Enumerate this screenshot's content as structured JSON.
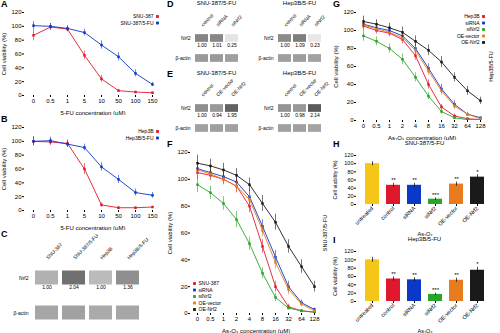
{
  "chart_data": [
    {
      "type": "line",
      "title": "A",
      "xlabel": "5-FU concentration (μM)",
      "ylabel": "Cell viability (%)",
      "categories": [
        "0",
        "0.5",
        "1",
        "5",
        "10",
        "50",
        "100",
        "150"
      ],
      "series": [
        {
          "name": "SNU-387",
          "color": "#e0182d",
          "marker": "square",
          "values": [
            87,
            99,
            96,
            58,
            24,
            7,
            5,
            4
          ],
          "errors": [
            8,
            5,
            4,
            6,
            5,
            2,
            1,
            1
          ]
        },
        {
          "name": "SNU-387/5-FU",
          "color": "#0a38c8",
          "marker": "square",
          "values": [
            101,
            100,
            97,
            91,
            73,
            56,
            32,
            16
          ],
          "errors": [
            6,
            4,
            4,
            5,
            6,
            6,
            5,
            3
          ]
        }
      ],
      "ylim": [
        0,
        120
      ],
      "yticks": [
        0,
        20,
        40,
        60,
        80,
        100,
        120
      ],
      "grid": false,
      "legend": "upper right"
    },
    {
      "type": "line",
      "title": "B",
      "xlabel": "5-FU concentration (μM)",
      "ylabel": "Cell viability (%)",
      "categories": [
        "0",
        "0.5",
        "1",
        "5",
        "10",
        "50",
        "100",
        "150"
      ],
      "series": [
        {
          "name": "Hep3B",
          "color": "#e0182d",
          "marker": "square",
          "values": [
            100,
            99,
            97,
            60,
            8,
            4,
            4,
            5
          ],
          "errors": [
            7,
            5,
            5,
            8,
            3,
            2,
            1,
            1
          ]
        },
        {
          "name": "Hep3B/5-FU",
          "color": "#0a38c8",
          "marker": "square",
          "values": [
            100,
            101,
            96,
            91,
            63,
            45,
            26,
            22
          ],
          "errors": [
            6,
            5,
            5,
            5,
            6,
            6,
            5,
            4
          ]
        }
      ],
      "ylim": [
        0,
        120
      ],
      "yticks": [
        0,
        20,
        40,
        60,
        80,
        100,
        120
      ],
      "grid": false,
      "legend": "upper right"
    },
    {
      "type": "blot",
      "title": "C",
      "categories": [
        "SNU-387",
        "SNU-387/5-FU",
        "Hep3B",
        "Hep3B/5-FU"
      ],
      "series": [
        {
          "name": "Nrf2",
          "values": [
            0.55,
            0.85,
            0.5,
            0.7
          ]
        },
        {
          "name": "β-actin",
          "values": [
            0.6,
            0.62,
            0.58,
            0.6
          ]
        }
      ],
      "values": [
        1.0,
        2.04,
        1.0,
        1.36
      ],
      "value_labels": [
        "1.00",
        "2.04",
        "1.00",
        "1.36"
      ],
      "data_labels": true
    },
    {
      "type": "blot",
      "title": "D",
      "subtitle": "SNU-387/5-FU",
      "categories": [
        "control",
        "siRNA",
        "siNrf2"
      ],
      "series": [
        {
          "name": "Nrf2",
          "values": [
            0.75,
            0.74,
            0.25
          ]
        },
        {
          "name": "β-actin",
          "values": [
            0.65,
            0.65,
            0.63
          ]
        }
      ],
      "values": [
        1.0,
        1.01,
        0.25
      ],
      "value_labels": [
        "1.00",
        "1.01",
        "0.25"
      ],
      "data_labels": true
    },
    {
      "type": "blot",
      "subtitle": "Hep3B/5-FU",
      "categories": [
        "control",
        "siRNA",
        "siNrf2"
      ],
      "series": [
        {
          "name": "Nrf2",
          "values": [
            0.72,
            0.78,
            0.22
          ]
        },
        {
          "name": "β-actin",
          "values": [
            0.63,
            0.64,
            0.62
          ]
        }
      ],
      "values": [
        1.0,
        1.09,
        0.23
      ],
      "value_labels": [
        "1.00",
        "1.09",
        "0.23"
      ],
      "data_labels": true
    },
    {
      "type": "blot",
      "title": "E",
      "subtitle": "SNU-387/5-FU",
      "categories": [
        "control",
        "OE-vector",
        "OE-Nrf2"
      ],
      "series": [
        {
          "name": "Nrf2",
          "values": [
            0.7,
            0.65,
            0.92
          ]
        },
        {
          "name": "β-actin",
          "values": [
            0.62,
            0.63,
            0.62
          ]
        }
      ],
      "values": [
        1.0,
        0.94,
        1.95
      ],
      "value_labels": [
        "1.00",
        "0.94",
        "1.95"
      ],
      "data_labels": true
    },
    {
      "type": "blot",
      "subtitle": "Hep3B/5-FU",
      "categories": [
        "control",
        "OE-vector",
        "OE-Nrf2"
      ],
      "series": [
        {
          "name": "Nrf2",
          "values": [
            0.68,
            0.66,
            0.95
          ]
        },
        {
          "name": "β-actin",
          "values": [
            0.62,
            0.63,
            0.61
          ]
        }
      ],
      "values": [
        1.0,
        0.98,
        2.14
      ],
      "value_labels": [
        "1.00",
        "0.98",
        "2.14"
      ],
      "data_labels": true
    },
    {
      "type": "line",
      "title": "F",
      "xlabel": "As₂O₃ concentration (μM)",
      "ylabel": "Cell viability (%)",
      "annotation": "SNU-387/5-FU",
      "categories": [
        "0",
        "0.5",
        "1",
        "2",
        "4",
        "8",
        "16",
        "32",
        "64",
        "128"
      ],
      "series": [
        {
          "name": "SNU-387",
          "color": "#e0182d",
          "marker": "square",
          "values": [
            105,
            103,
            100,
            95,
            80,
            50,
            20,
            5,
            2,
            1
          ],
          "errors": [
            5,
            4,
            4,
            5,
            5,
            5,
            4,
            2,
            1,
            1
          ]
        },
        {
          "name": "siRNA",
          "color": "#0a38c8",
          "marker": "square",
          "values": [
            108,
            105,
            102,
            98,
            87,
            65,
            42,
            20,
            8,
            3
          ],
          "errors": [
            5,
            4,
            4,
            5,
            5,
            5,
            5,
            4,
            2,
            1
          ]
        },
        {
          "name": "siNrf2",
          "color": "#27a627",
          "marker": "square",
          "values": [
            96,
            90,
            82,
            70,
            52,
            30,
            12,
            4,
            2,
            1
          ],
          "errors": [
            6,
            5,
            5,
            6,
            5,
            4,
            3,
            1,
            1,
            1
          ]
        },
        {
          "name": "OE-vector",
          "color": "#e87b1e",
          "marker": "square",
          "values": [
            107,
            104,
            100,
            95,
            85,
            62,
            38,
            18,
            7,
            2
          ],
          "errors": [
            5,
            4,
            4,
            5,
            5,
            5,
            5,
            4,
            2,
            1
          ]
        },
        {
          "name": "OE-Nrf2",
          "color": "#1a1a1a",
          "marker": "square",
          "values": [
            112,
            110,
            107,
            103,
            96,
            82,
            68,
            50,
            35,
            20
          ],
          "errors": [
            6,
            5,
            5,
            5,
            5,
            6,
            6,
            5,
            5,
            4
          ]
        }
      ],
      "ylim": [
        0,
        120
      ],
      "yticks": [
        0,
        20,
        40,
        60,
        80,
        100,
        120
      ],
      "grid": false,
      "legend": "lower left"
    },
    {
      "type": "line",
      "title": "G",
      "xlabel": "As₂O₃ concentration (μM)",
      "ylabel": "Cell viability (%)",
      "annotation": "Hep3B/5-FU",
      "categories": [
        "0",
        "0.5",
        "1",
        "2",
        "4",
        "8",
        "16",
        "32",
        "64",
        "128"
      ],
      "series": [
        {
          "name": "Hep3B",
          "color": "#e0182d",
          "marker": "square",
          "values": [
            105,
            100,
            97,
            90,
            72,
            40,
            15,
            5,
            2,
            1
          ],
          "errors": [
            5,
            4,
            4,
            5,
            5,
            5,
            3,
            2,
            1,
            1
          ]
        },
        {
          "name": "siRNA",
          "color": "#0a38c8",
          "marker": "square",
          "values": [
            107,
            103,
            100,
            94,
            80,
            58,
            35,
            18,
            7,
            3
          ],
          "errors": [
            5,
            4,
            4,
            5,
            5,
            5,
            5,
            4,
            2,
            1
          ]
        },
        {
          "name": "siNrf2",
          "color": "#27a627",
          "marker": "square",
          "values": [
            94,
            88,
            80,
            68,
            48,
            27,
            10,
            3,
            1,
            1
          ],
          "errors": [
            6,
            5,
            5,
            6,
            5,
            4,
            3,
            1,
            1,
            1
          ]
        },
        {
          "name": "OE-vector",
          "color": "#e87b1e",
          "marker": "square",
          "values": [
            106,
            102,
            98,
            92,
            78,
            55,
            33,
            16,
            7,
            2
          ],
          "errors": [
            5,
            4,
            4,
            5,
            5,
            5,
            5,
            4,
            2,
            1
          ]
        },
        {
          "name": "OE-Nrf2",
          "color": "#1a1a1a",
          "marker": "square",
          "values": [
            110,
            107,
            103,
            98,
            88,
            78,
            65,
            48,
            33,
            22
          ],
          "errors": [
            6,
            5,
            5,
            6,
            6,
            6,
            6,
            5,
            5,
            4
          ]
        }
      ],
      "ylim": [
        0,
        120
      ],
      "yticks": [
        0,
        20,
        40,
        60,
        80,
        100,
        120
      ],
      "grid": false,
      "legend": "upper right"
    },
    {
      "type": "bar",
      "title": "H",
      "subtitle": "SNU-387/5-FU",
      "xlabel": "As₂O₃",
      "ylabel": "Cell viability (%)",
      "categories": [
        "untreated",
        "control",
        "siRNA",
        "siNrf2",
        "OE-vector",
        "OE-Nrf2"
      ],
      "values": [
        100,
        47,
        47,
        13,
        50,
        67
      ],
      "errors": [
        5,
        5,
        5,
        3,
        5,
        6
      ],
      "colors": [
        "#f5c518",
        "#e0182d",
        "#0a38c8",
        "#27a627",
        "#e87b1e",
        "#1a1a1a"
      ],
      "annotations": [
        null,
        "**",
        "**",
        "***",
        "**",
        "*"
      ],
      "ylim": [
        0,
        120
      ],
      "yticks": [
        0,
        20,
        40,
        60,
        80,
        100,
        120
      ],
      "grid": false
    },
    {
      "type": "bar",
      "title": "I",
      "subtitle": "Hep3B/5-FU",
      "xlabel": "As₂O₃",
      "ylabel": "Cell viability (%)",
      "categories": [
        "untreated",
        "control",
        "siRNA",
        "siNrf2",
        "OE-vector",
        "OE-Nrf2"
      ],
      "values": [
        100,
        54,
        52,
        17,
        51,
        75
      ],
      "errors": [
        6,
        5,
        5,
        3,
        5,
        7
      ],
      "colors": [
        "#f5c518",
        "#e0182d",
        "#0a38c8",
        "#27a627",
        "#e87b1e",
        "#1a1a1a"
      ],
      "annotations": [
        null,
        "**",
        "**",
        "***",
        "**",
        "*"
      ],
      "ylim": [
        0,
        120
      ],
      "yticks": [
        0,
        20,
        40,
        60,
        80,
        100,
        120
      ],
      "grid": false
    }
  ]
}
